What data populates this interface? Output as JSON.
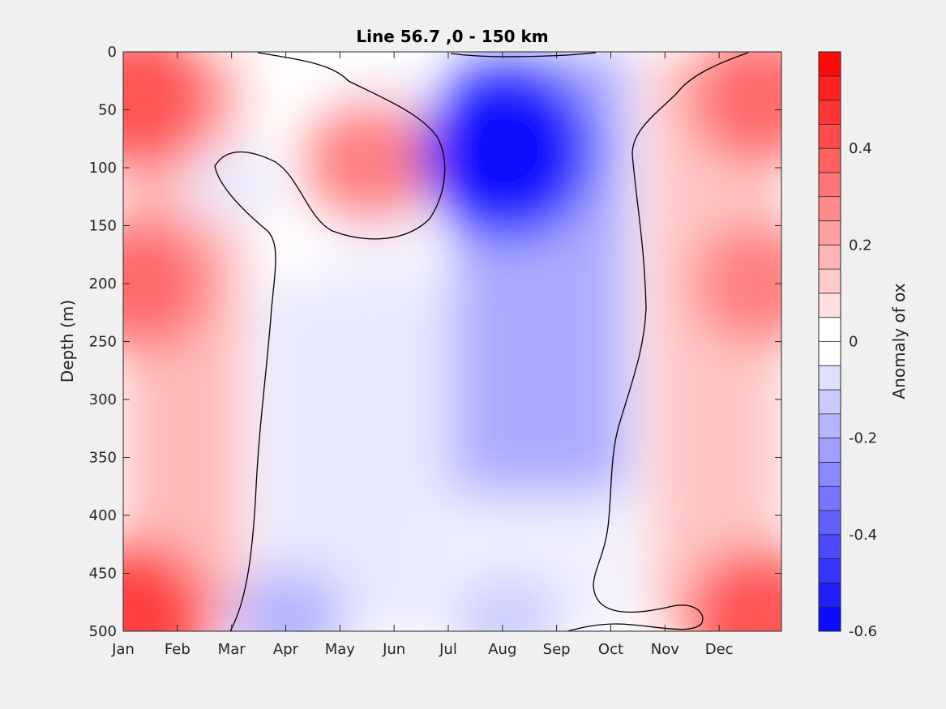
{
  "chart_data": {
    "type": "contour",
    "title": "Line 56.7 ,0 - 150 km",
    "xlabel": "",
    "ylabel": "Depth (m)",
    "colorbar_label": "Anomaly of ox",
    "x_categories": [
      "Jan",
      "Feb",
      "Mar",
      "Apr",
      "May",
      "Jun",
      "Jul",
      "Aug",
      "Sep",
      "Oct",
      "Nov",
      "Dec"
    ],
    "xlim": [
      "Jan",
      "Dec"
    ],
    "ylim": [
      0,
      500
    ],
    "y_reversed": true,
    "y_ticks": [
      "0",
      "50",
      "100",
      "150",
      "200",
      "250",
      "300",
      "350",
      "400",
      "450",
      "500"
    ],
    "clim": [
      -0.6,
      0.6
    ],
    "colorbar_ticks": [
      "0.4",
      "0.2",
      "0",
      "-0.2",
      "-0.4",
      "-0.6"
    ],
    "contour_levels_step": 0.05,
    "zero_contour_shown": true,
    "colormap": [
      "#0000ff",
      "#ffffff",
      "#ff0000"
    ],
    "features": [
      {
        "month": "Jan-Feb",
        "depth_m": 40,
        "anomaly": 0.4
      },
      {
        "month": "Jan-Feb",
        "depth_m": 200,
        "anomaly": 0.35
      },
      {
        "month": "Jan",
        "depth_m": 490,
        "anomaly": 0.45
      },
      {
        "month": "May-Jun",
        "depth_m": 95,
        "anomaly": 0.3
      },
      {
        "month": "Mar",
        "depth_m": 115,
        "anomaly": -0.05
      },
      {
        "month": "Aug",
        "depth_m": 85,
        "anomaly": -0.58
      },
      {
        "month": "Apr",
        "depth_m": 490,
        "anomaly": -0.18
      },
      {
        "month": "Aug",
        "depth_m": 490,
        "anomaly": -0.12
      },
      {
        "month": "Dec",
        "depth_m": 40,
        "anomaly": 0.35
      },
      {
        "month": "Dec",
        "depth_m": 200,
        "anomaly": 0.3
      },
      {
        "month": "Dec",
        "depth_m": 490,
        "anomaly": 0.4
      }
    ]
  }
}
